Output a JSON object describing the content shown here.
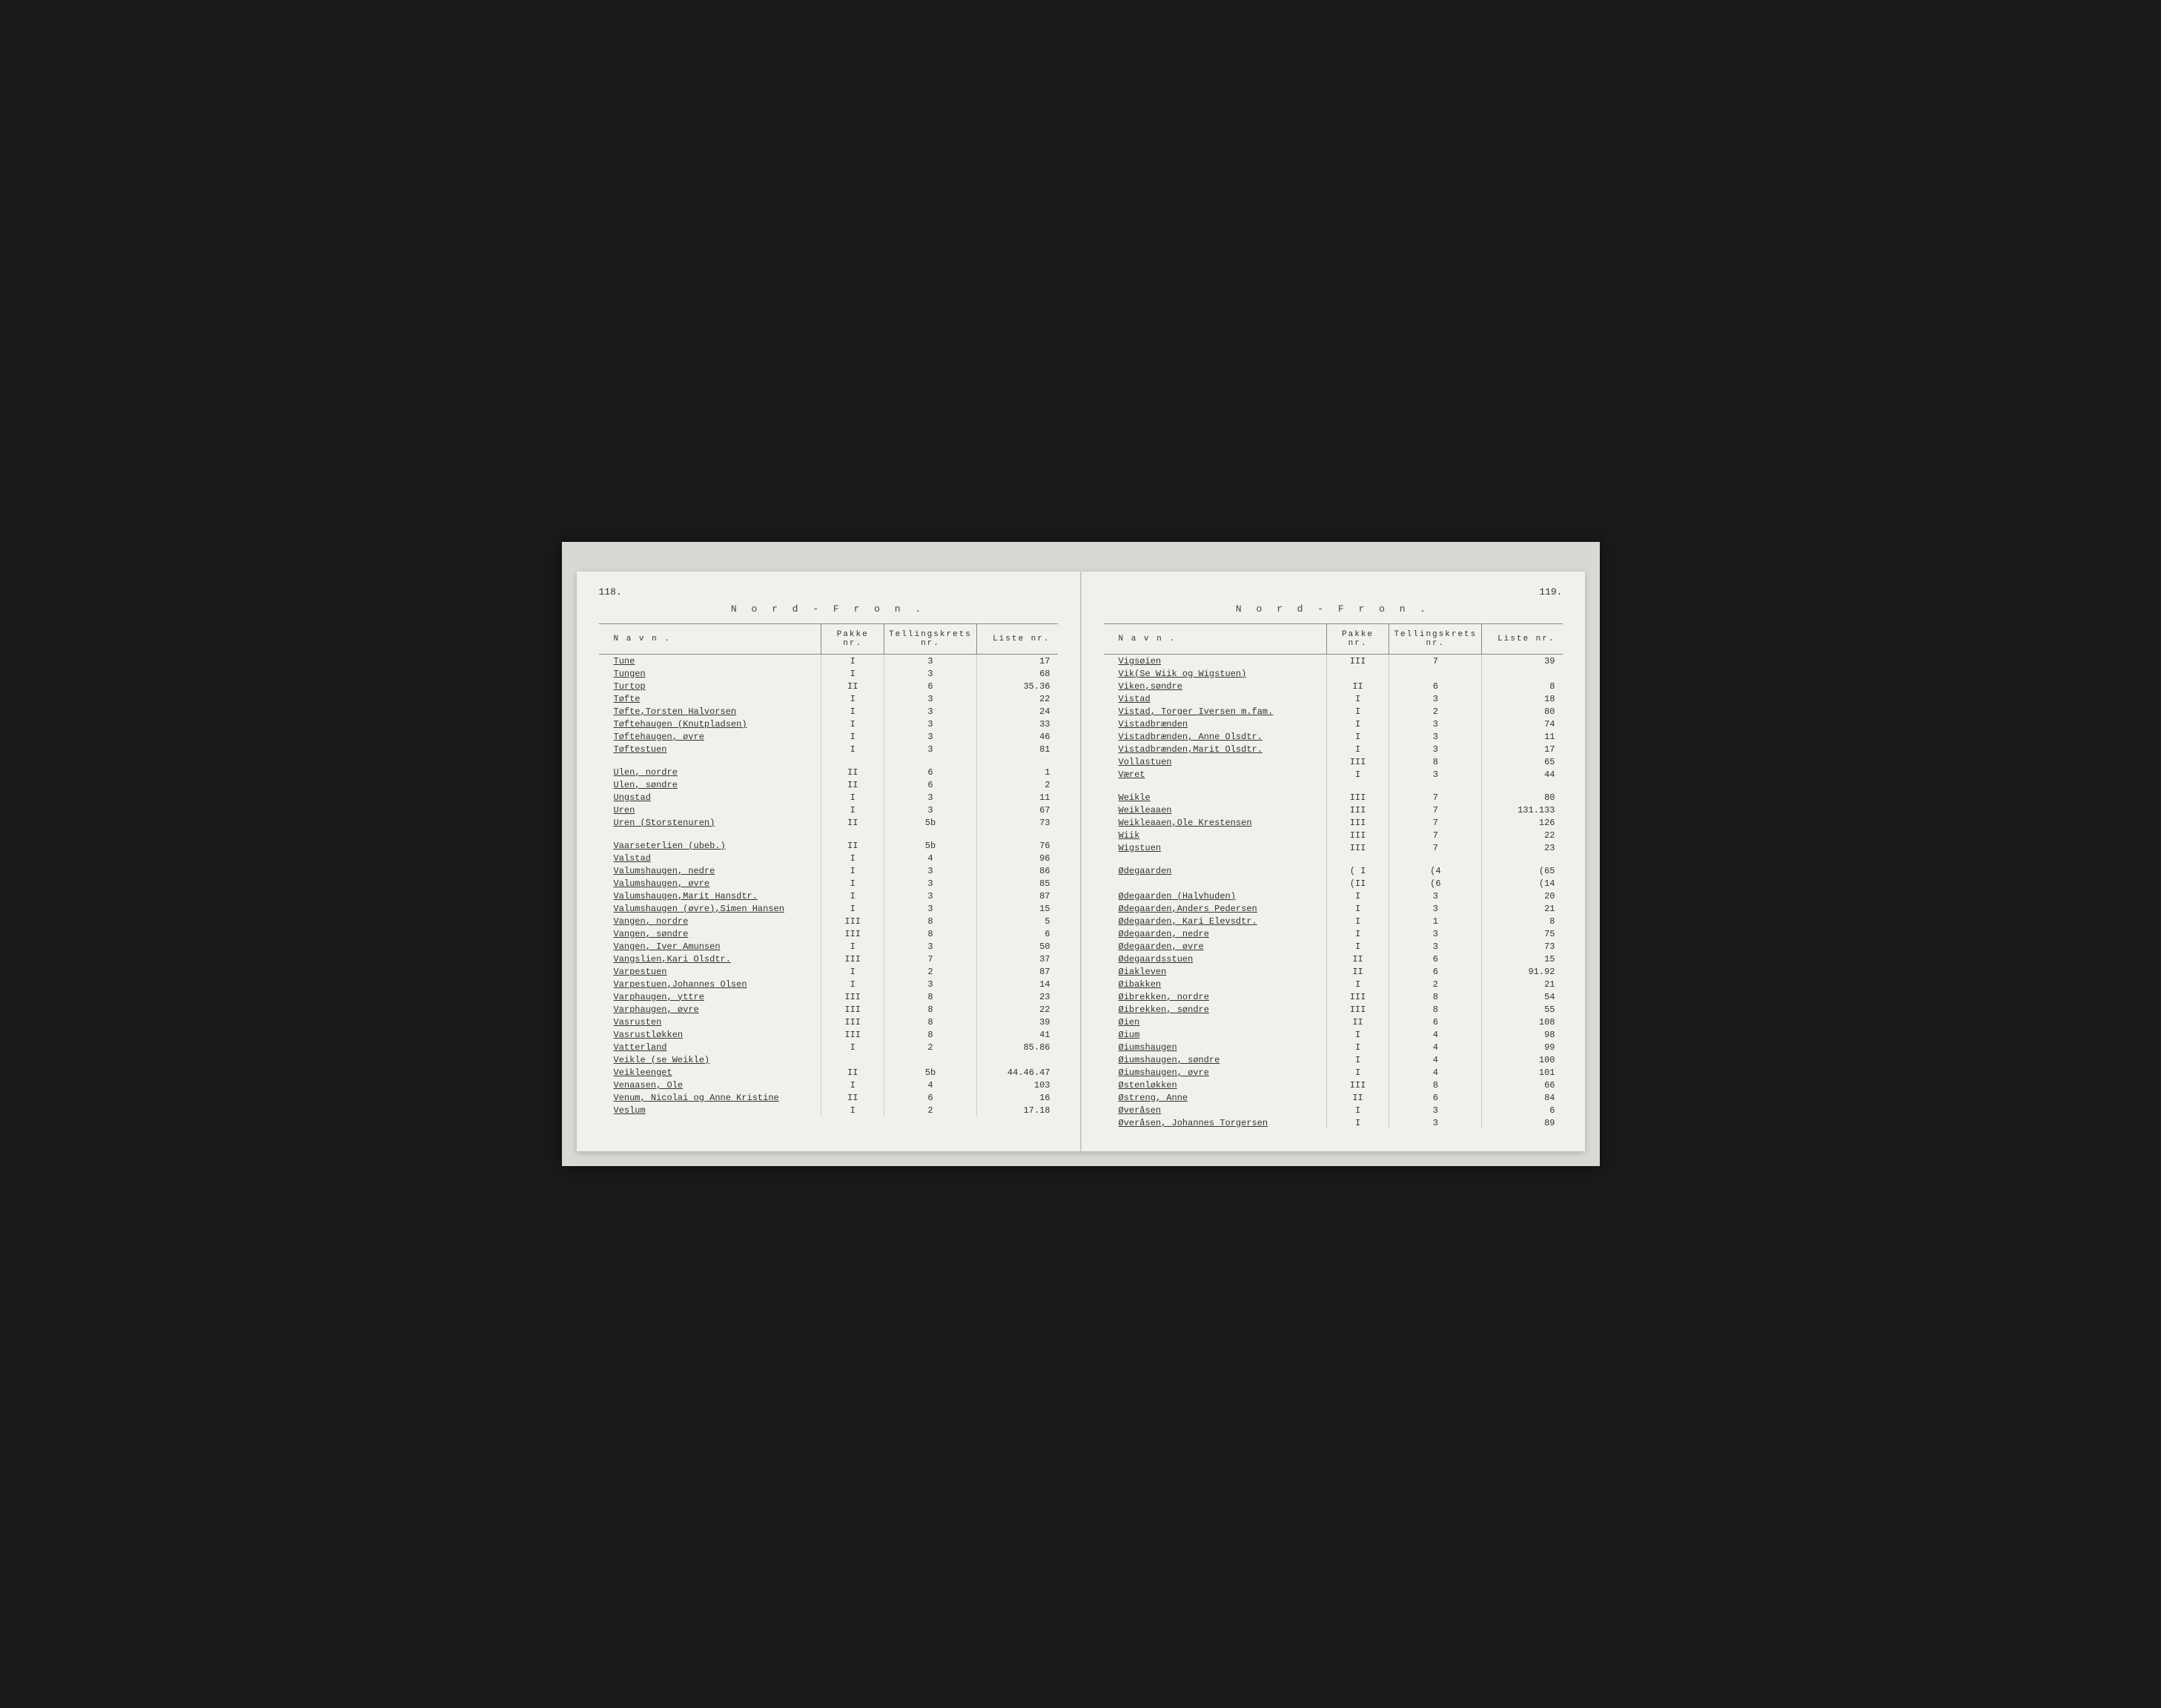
{
  "document": {
    "region_title": "N o r d - F r o n .",
    "left_page_number": "118.",
    "right_page_number": "119.",
    "headers": {
      "name": "N a v n .",
      "pakke": "Pakke nr.",
      "tellings": "Tellingskrets nr.",
      "liste": "Liste nr."
    }
  },
  "left_rows": [
    {
      "name": "Tune",
      "pakke": "I",
      "tellings": "3",
      "liste": "17"
    },
    {
      "name": "Tungen",
      "pakke": "I",
      "tellings": "3",
      "liste": "68"
    },
    {
      "name": "Turtop",
      "pakke": "II",
      "tellings": "6",
      "liste": "35.36"
    },
    {
      "name": "Tøfte",
      "pakke": "I",
      "tellings": "3",
      "liste": "22"
    },
    {
      "name": "Tøfte,Torsten Halvorsen",
      "pakke": "I",
      "tellings": "3",
      "liste": "24"
    },
    {
      "name": "Tøftehaugen (Knutpladsen)",
      "pakke": "I",
      "tellings": "3",
      "liste": "33"
    },
    {
      "name": "Tøftehaugen, øvre",
      "pakke": "I",
      "tellings": "3",
      "liste": "46"
    },
    {
      "name": "Tøftestuen",
      "pakke": "I",
      "tellings": "3",
      "liste": "81"
    },
    {
      "blank": true
    },
    {
      "name": "Ulen, nordre",
      "pakke": "II",
      "tellings": "6",
      "liste": "1"
    },
    {
      "name": "Ulen, søndre",
      "pakke": "II",
      "tellings": "6",
      "liste": "2"
    },
    {
      "name": "Ungstad",
      "pakke": "I",
      "tellings": "3",
      "liste": "11"
    },
    {
      "name": "Uren",
      "pakke": "I",
      "tellings": "3",
      "liste": "67"
    },
    {
      "name": "Uren (Storstenuren)",
      "pakke": "II",
      "tellings": "5b",
      "liste": "73"
    },
    {
      "blank": true
    },
    {
      "name": "Vaarseterlien (ubeb.)",
      "pakke": "II",
      "tellings": "5b",
      "liste": "76"
    },
    {
      "name": "Valstad",
      "pakke": "I",
      "tellings": "4",
      "liste": "96"
    },
    {
      "name": "Valumshaugen, nedre",
      "pakke": "I",
      "tellings": "3",
      "liste": "86"
    },
    {
      "name": "Valumshaugen, øvre",
      "pakke": "I",
      "tellings": "3",
      "liste": "85"
    },
    {
      "name": "Valumshaugen,Marit Hansdtr.",
      "pakke": "I",
      "tellings": "3",
      "liste": "87"
    },
    {
      "name": "Valumshaugen (øvre),Simen Hansen",
      "pakke": "I",
      "tellings": "3",
      "liste": "15"
    },
    {
      "name": "Vangen, nordre",
      "pakke": "III",
      "tellings": "8",
      "liste": "5"
    },
    {
      "name": "Vangen, søndre",
      "pakke": "III",
      "tellings": "8",
      "liste": "6"
    },
    {
      "name": "Vangen, Iver Amunsen",
      "pakke": "I",
      "tellings": "3",
      "liste": "50"
    },
    {
      "name": "Vangslien,Kari Olsdtr.",
      "pakke": "III",
      "tellings": "7",
      "liste": "37"
    },
    {
      "name": "Varpestuen",
      "pakke": "I",
      "tellings": "2",
      "liste": "87"
    },
    {
      "name": "Varpestuen,Johannes Olsen",
      "pakke": "I",
      "tellings": "3",
      "liste": "14"
    },
    {
      "name": "Varphaugen, yttre",
      "pakke": "III",
      "tellings": "8",
      "liste": "23"
    },
    {
      "name": "Varphaugen, øvre",
      "pakke": "III",
      "tellings": "8",
      "liste": "22"
    },
    {
      "name": "Vasrusten",
      "pakke": "III",
      "tellings": "8",
      "liste": "39"
    },
    {
      "name": "Vasrustløkken",
      "pakke": "III",
      "tellings": "8",
      "liste": "41"
    },
    {
      "name": "Vatterland",
      "pakke": "I",
      "tellings": "2",
      "liste": "85.86"
    },
    {
      "name": "Veikle (se Weikle)",
      "pakke": "",
      "tellings": "",
      "liste": ""
    },
    {
      "name": "Veikleenget",
      "pakke": "II",
      "tellings": "5b",
      "liste": "44.46.47"
    },
    {
      "name": "Venaasen, Ole",
      "pakke": "I",
      "tellings": "4",
      "liste": "103"
    },
    {
      "name": "Venum, Nicolai og Anne Kristine",
      "pakke": "II",
      "tellings": "6",
      "liste": "16"
    },
    {
      "name": "Veslum",
      "pakke": "I",
      "tellings": "2",
      "liste": "17.18"
    }
  ],
  "right_rows": [
    {
      "name": "Vigsøien",
      "pakke": "III",
      "tellings": "7",
      "liste": "39"
    },
    {
      "name": "Vik(Se Wiik og Wigstuen)",
      "pakke": "",
      "tellings": "",
      "liste": ""
    },
    {
      "name": "Viken,søndre",
      "pakke": "II",
      "tellings": "6",
      "liste": "8"
    },
    {
      "name": "Vistad",
      "pakke": "I",
      "tellings": "3",
      "liste": "18"
    },
    {
      "name": "Vistad, Torger Iversen m.fam.",
      "pakke": "I",
      "tellings": "2",
      "liste": "80"
    },
    {
      "name": "Vistadbrænden",
      "pakke": "I",
      "tellings": "3",
      "liste": "74"
    },
    {
      "name": "Vistadbrænden, Anne Olsdtr.",
      "pakke": "I",
      "tellings": "3",
      "liste": "11"
    },
    {
      "name": "Vistadbrænden,Marit Olsdtr.",
      "pakke": "I",
      "tellings": "3",
      "liste": "17"
    },
    {
      "name": "Vollastuen",
      "pakke": "III",
      "tellings": "8",
      "liste": "65"
    },
    {
      "name": "Været",
      "pakke": "I",
      "tellings": "3",
      "liste": "44"
    },
    {
      "blank": true
    },
    {
      "name": "Weikle",
      "pakke": "III",
      "tellings": "7",
      "liste": "80"
    },
    {
      "name": "Weikleaaen",
      "pakke": "III",
      "tellings": "7",
      "liste": "131.133"
    },
    {
      "name": "Weikleaaen,Ole Krestensen",
      "pakke": "III",
      "tellings": "7",
      "liste": "126"
    },
    {
      "name": "Wiik",
      "pakke": "III",
      "tellings": "7",
      "liste": "22"
    },
    {
      "name": "Wigstuen",
      "pakke": "III",
      "tellings": "7",
      "liste": "23"
    },
    {
      "blank": true
    },
    {
      "name": "Ødegaarden",
      "pakke": "( I",
      "tellings": "(4",
      "liste": "(65"
    },
    {
      "name": "",
      "pakke": "(II",
      "tellings": "(6",
      "liste": "(14"
    },
    {
      "name": "Ødegaarden (Halvhuden)",
      "pakke": "I",
      "tellings": "3",
      "liste": "20"
    },
    {
      "name": "Ødegaarden,Anders Pedersen",
      "pakke": "I",
      "tellings": "3",
      "liste": "21"
    },
    {
      "name": "Ødegaarden, Kari Elevsdtr.",
      "pakke": "I",
      "tellings": "1",
      "liste": "8"
    },
    {
      "name": "Ødegaarden, nedre",
      "pakke": "I",
      "tellings": "3",
      "liste": "75"
    },
    {
      "name": "Ødegaarden, øvre",
      "pakke": "I",
      "tellings": "3",
      "liste": "73"
    },
    {
      "name": "Ødegaardsstuen",
      "pakke": "II",
      "tellings": "6",
      "liste": "15"
    },
    {
      "name": "Øiakleven",
      "pakke": "II",
      "tellings": "6",
      "liste": "91.92"
    },
    {
      "name": "Øibakken",
      "pakke": "I",
      "tellings": "2",
      "liste": "21"
    },
    {
      "name": "Øibrekken, nordre",
      "pakke": "III",
      "tellings": "8",
      "liste": "54"
    },
    {
      "name": "Øibrekken, søndre",
      "pakke": "III",
      "tellings": "8",
      "liste": "55"
    },
    {
      "name": "Øien",
      "pakke": "II",
      "tellings": "6",
      "liste": "108"
    },
    {
      "name": "Øium",
      "pakke": "I",
      "tellings": "4",
      "liste": "98"
    },
    {
      "name": "Øiumshaugen",
      "pakke": "I",
      "tellings": "4",
      "liste": "99"
    },
    {
      "name": "Øiumshaugen, søndre",
      "pakke": "I",
      "tellings": "4",
      "liste": "100"
    },
    {
      "name": "Øiumshaugen, øvre",
      "pakke": "I",
      "tellings": "4",
      "liste": "101"
    },
    {
      "name": "Østenløkken",
      "pakke": "III",
      "tellings": "8",
      "liste": "66"
    },
    {
      "name": "Østreng, Anne",
      "pakke": "II",
      "tellings": "6",
      "liste": "84"
    },
    {
      "name": "Øveråsen",
      "pakke": "I",
      "tellings": "3",
      "liste": "6"
    },
    {
      "name": "Øveråsen, Johannes Torgersen",
      "pakke": "I",
      "tellings": "3",
      "liste": "89"
    }
  ]
}
